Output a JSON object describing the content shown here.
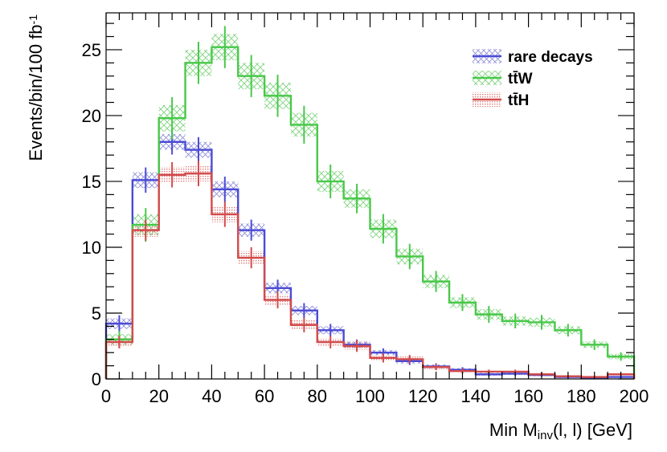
{
  "chart_data": {
    "type": "histogram",
    "xlabel": {
      "prefix": "Min M",
      "sub": "inv",
      "suffix": "(l, l) [GeV]"
    },
    "ylabel": {
      "main": "Events/bin/100 fb",
      "sup": "-1"
    },
    "xlim": [
      0,
      200
    ],
    "ylim": [
      0,
      27.8
    ],
    "xticks": [
      "0",
      "20",
      "40",
      "60",
      "80",
      "100",
      "120",
      "140",
      "160",
      "180",
      "200"
    ],
    "yticks": [
      "0",
      "5",
      "10",
      "15",
      "20",
      "25"
    ],
    "bin_edges": [
      0,
      10,
      20,
      30,
      40,
      50,
      60,
      70,
      80,
      90,
      100,
      110,
      120,
      130,
      140,
      150,
      160,
      170,
      180,
      190,
      200
    ],
    "legend_position": "top-right",
    "series": [
      {
        "name": "rare decays",
        "label": "rare decays",
        "color": "#4b4bd6",
        "band_color": "#8d8dd8",
        "values": [
          4.2,
          15.1,
          18.0,
          17.4,
          14.4,
          11.3,
          6.9,
          5.2,
          3.7,
          2.6,
          2.0,
          1.35,
          0.95,
          0.7,
          0.35,
          0.4,
          0.3,
          0.15,
          0.1,
          0.15
        ],
        "errors": [
          0.4,
          0.6,
          0.6,
          0.6,
          0.6,
          0.5,
          0.4,
          0.35,
          0.3,
          0.25,
          0.2,
          0.18,
          0.15,
          0.12,
          0.1,
          0.1,
          0.08,
          0.06,
          0.05,
          0.06
        ]
      },
      {
        "name": "ttW",
        "label": "tt̄W",
        "color": "#49c849",
        "band_color": "#7fd47f",
        "values": [
          3.0,
          11.7,
          19.8,
          24.0,
          25.2,
          23.0,
          21.5,
          19.3,
          15.0,
          13.7,
          11.4,
          9.3,
          7.4,
          5.8,
          4.9,
          4.4,
          4.3,
          3.7,
          2.6,
          1.7
        ],
        "errors": [
          0.4,
          0.8,
          1.0,
          1.0,
          1.0,
          1.0,
          1.0,
          0.9,
          0.8,
          0.7,
          0.7,
          0.6,
          0.5,
          0.4,
          0.4,
          0.35,
          0.35,
          0.3,
          0.25,
          0.2
        ]
      },
      {
        "name": "ttH",
        "label": "tt̄H",
        "color": "#d24b4b",
        "band_color": "#dd7a7a",
        "values": [
          2.8,
          11.3,
          15.5,
          15.6,
          12.5,
          9.2,
          6.0,
          4.1,
          2.8,
          2.5,
          1.6,
          1.5,
          0.9,
          0.6,
          0.55,
          0.55,
          0.35,
          0.2,
          0.15,
          0.35
        ],
        "errors": [
          0.3,
          0.5,
          0.6,
          0.6,
          0.6,
          0.5,
          0.4,
          0.35,
          0.3,
          0.28,
          0.22,
          0.2,
          0.15,
          0.12,
          0.1,
          0.1,
          0.08,
          0.06,
          0.05,
          0.06
        ]
      }
    ]
  }
}
